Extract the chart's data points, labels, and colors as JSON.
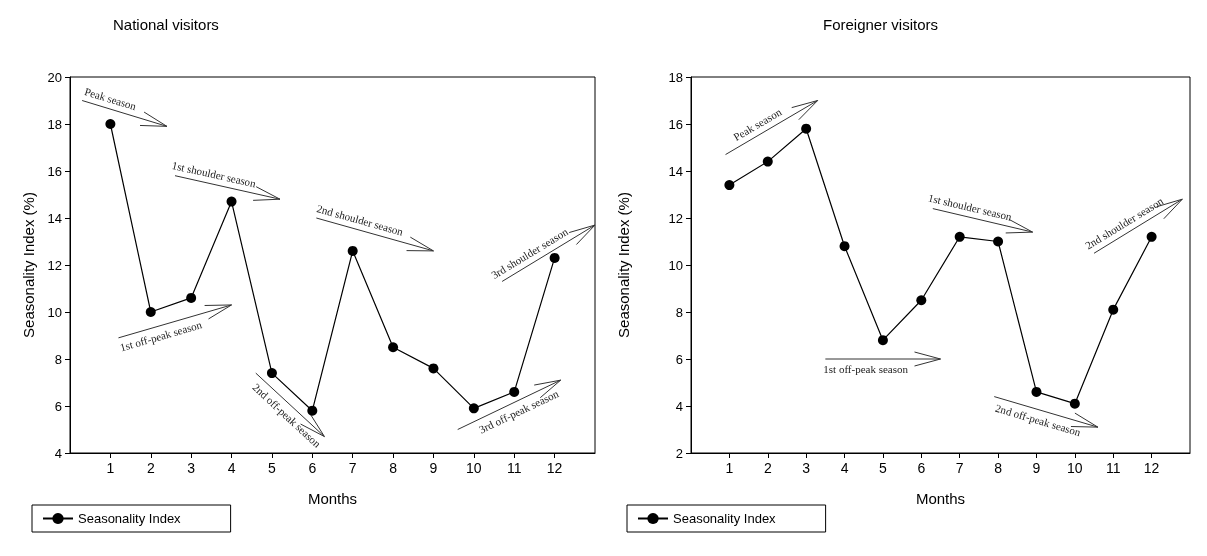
{
  "chart_data": [
    {
      "type": "line",
      "title": "National visitors",
      "xlabel": "Months",
      "ylabel": "Seasonality Index (%)",
      "x": [
        1,
        2,
        3,
        4,
        5,
        6,
        7,
        8,
        9,
        10,
        11,
        12
      ],
      "series": [
        {
          "name": "Seasonality Index",
          "color": "#000000",
          "values": [
            18.0,
            10.0,
            10.6,
            14.7,
            7.4,
            5.8,
            12.6,
            8.5,
            7.6,
            5.9,
            6.6,
            12.3
          ]
        }
      ],
      "xlim": [
        0,
        13
      ],
      "xticks": [
        1,
        2,
        3,
        4,
        5,
        6,
        7,
        8,
        9,
        10,
        11,
        12
      ],
      "ylim": [
        4,
        20
      ],
      "yticks": [
        4,
        6,
        8,
        10,
        12,
        14,
        16,
        18,
        20
      ],
      "marker": "circle",
      "legend": "bottom left",
      "grid": false,
      "annotations": [
        "Peak season",
        "1st shoulder season",
        "2nd shoulder season",
        "3rd shoulder season",
        "1st off-peak season",
        "2nd off-peak season",
        "3rd off-peak season"
      ]
    },
    {
      "type": "line",
      "title": "Foreigner visitors",
      "xlabel": "Months",
      "ylabel": "Seasonality Index (%)",
      "x": [
        1,
        2,
        3,
        4,
        5,
        6,
        7,
        8,
        9,
        10,
        11,
        12
      ],
      "series": [
        {
          "name": "Seasonality Index",
          "color": "#000000",
          "values": [
            13.4,
            14.4,
            15.8,
            10.8,
            6.8,
            8.5,
            11.2,
            11.0,
            4.6,
            4.1,
            8.1,
            11.2
          ]
        }
      ],
      "xlim": [
        0,
        13
      ],
      "xticks": [
        1,
        2,
        3,
        4,
        5,
        6,
        7,
        8,
        9,
        10,
        11,
        12
      ],
      "ylim": [
        2,
        18
      ],
      "yticks": [
        2,
        4,
        6,
        8,
        10,
        12,
        14,
        16,
        18
      ],
      "marker": "circle",
      "legend": "bottom left",
      "grid": false,
      "annotations": [
        "Peak season",
        "1st shoulder season",
        "2nd shoulder season",
        "1st off-peak season",
        "2nd off-peak season"
      ]
    }
  ]
}
